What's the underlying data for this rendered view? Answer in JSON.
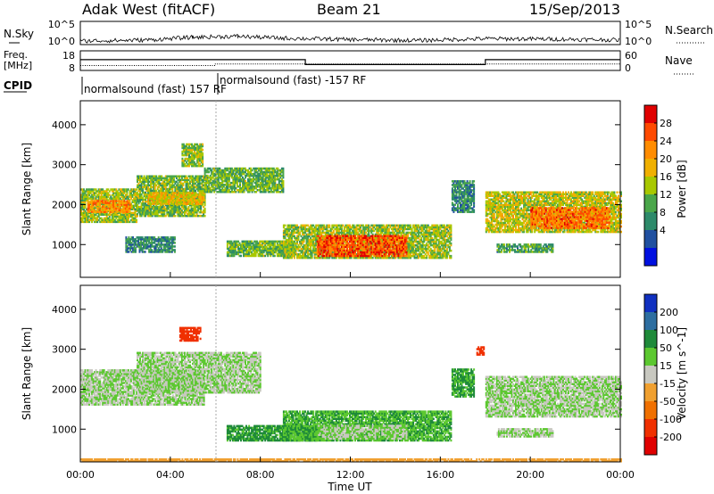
{
  "header": {
    "station": "Adak West (fitACF)",
    "beam": "Beam 21",
    "date": "15/Sep/2013"
  },
  "noise_panel": {
    "left_label": "N.Sky",
    "right_label": "N.Search",
    "left_ticks": [
      "10^5",
      "10^0"
    ],
    "right_ticks": [
      "10^5",
      "10^0"
    ]
  },
  "freq_panel": {
    "left_label_1": "Freq.",
    "left_label_2": "[MHz]",
    "left_ticks": [
      "18",
      "8"
    ],
    "right_label": "Nave",
    "right_ticks": [
      "60",
      "0"
    ]
  },
  "cpid_panel": {
    "label": "CPID",
    "segments": [
      {
        "start_hour": 0,
        "end_hour": 6.1,
        "text": "normalsound (fast) 157 RF"
      },
      {
        "start_hour": 6.1,
        "end_hour": 24,
        "text": "normalsound (fast) -157 RF"
      }
    ]
  },
  "power_colorbar": {
    "label": "Power [dB]",
    "ticks": [
      "28",
      "24",
      "20",
      "16",
      "12",
      "8",
      "4"
    ],
    "colors": [
      "#e00000",
      "#ff4a00",
      "#ff8c00",
      "#f0b000",
      "#a8c800",
      "#4aa64a",
      "#2d8a6a",
      "#2050a0",
      "#0010e0"
    ]
  },
  "velocity_colorbar": {
    "label": "Velocity [m s^-1]",
    "ticks": [
      "200",
      "100",
      "50",
      "15",
      "-15",
      "-50",
      "-100",
      "-200"
    ],
    "colors": [
      "#1030c0",
      "#2d6ea0",
      "#1f8a3a",
      "#5cc830",
      "#c8c8c0",
      "#f0a030",
      "#f07000",
      "#f03000",
      "#e00000"
    ]
  },
  "axes": {
    "ylabel": "Slant Range [km]",
    "yticks": [
      "4000",
      "3000",
      "2000",
      "1000"
    ],
    "xlabel": "Time UT",
    "xticks": [
      "00:00",
      "04:00",
      "08:00",
      "12:00",
      "16:00",
      "20:00",
      "00:00"
    ]
  },
  "chart_data": {
    "type": "heatmap",
    "x_range_hours": [
      0,
      24
    ],
    "y_range_km": [
      180,
      4600
    ],
    "freq_mhz": [
      {
        "x": 0,
        "y": 13.5
      },
      {
        "x": 10,
        "y": 13.5
      },
      {
        "x": 10,
        "y": 11
      },
      {
        "x": 18,
        "y": 11
      },
      {
        "x": 18,
        "y": 13.5
      },
      {
        "x": 24,
        "y": 13.5
      }
    ],
    "nave": [
      {
        "x": 0,
        "y": 15
      },
      {
        "x": 6,
        "y": 15
      },
      {
        "x": 6,
        "y": 20
      },
      {
        "x": 24,
        "y": 20
      }
    ],
    "noise_sky_log10": [
      {
        "x": 0,
        "y": 0.6
      },
      {
        "x": 3,
        "y": 0.8
      },
      {
        "x": 5,
        "y": 1.4
      },
      {
        "x": 7,
        "y": 1.6
      },
      {
        "x": 9,
        "y": 1.2
      },
      {
        "x": 12,
        "y": 0.9
      },
      {
        "x": 15,
        "y": 0.7
      },
      {
        "x": 18,
        "y": 1.1
      },
      {
        "x": 21,
        "y": 1.0
      },
      {
        "x": 24,
        "y": 0.8
      }
    ],
    "power_regions": [
      {
        "t0": 0.0,
        "t1": 2.5,
        "r0": 1550,
        "r1": 2400,
        "val": 14
      },
      {
        "t0": 0.3,
        "t1": 2.2,
        "r0": 1800,
        "r1": 2100,
        "val": 22
      },
      {
        "t0": 2.5,
        "t1": 5.5,
        "r0": 1700,
        "r1": 2700,
        "val": 13
      },
      {
        "t0": 3.0,
        "t1": 5.5,
        "r0": 2000,
        "r1": 2300,
        "val": 18
      },
      {
        "t0": 5.5,
        "t1": 9.0,
        "r0": 2300,
        "r1": 2900,
        "val": 12
      },
      {
        "t0": 4.5,
        "t1": 5.4,
        "r0": 2950,
        "r1": 3500,
        "val": 14
      },
      {
        "t0": 2.0,
        "t1": 4.2,
        "r0": 800,
        "r1": 1200,
        "val": 8
      },
      {
        "t0": 6.5,
        "t1": 9.5,
        "r0": 700,
        "r1": 1100,
        "val": 12
      },
      {
        "t0": 9.0,
        "t1": 16.5,
        "r0": 650,
        "r1": 1500,
        "val": 14
      },
      {
        "t0": 10.5,
        "t1": 14.5,
        "r0": 700,
        "r1": 1200,
        "val": 26
      },
      {
        "t0": 16.5,
        "t1": 17.5,
        "r0": 1800,
        "r1": 2600,
        "val": 8
      },
      {
        "t0": 18.5,
        "t1": 21.0,
        "r0": 800,
        "r1": 1000,
        "val": 10
      },
      {
        "t0": 18.0,
        "t1": 24.0,
        "r0": 1300,
        "r1": 2300,
        "val": 16
      },
      {
        "t0": 20.0,
        "t1": 23.5,
        "r0": 1400,
        "r1": 1900,
        "val": 24
      }
    ],
    "velocity_regions": [
      {
        "t0": 0.0,
        "t1": 5.5,
        "r0": 1600,
        "r1": 2500,
        "val": 0
      },
      {
        "t0": 2.5,
        "t1": 8.0,
        "r0": 1900,
        "r1": 2900,
        "val": 0
      },
      {
        "t0": 4.4,
        "t1": 5.3,
        "r0": 3200,
        "r1": 3550,
        "val": -180
      },
      {
        "t0": 6.5,
        "t1": 10.5,
        "r0": 700,
        "r1": 1100,
        "val": 40
      },
      {
        "t0": 9.0,
        "t1": 16.5,
        "r0": 700,
        "r1": 1450,
        "val": 30
      },
      {
        "t0": 10.5,
        "t1": 14.5,
        "r0": 750,
        "r1": 1100,
        "val": 0
      },
      {
        "t0": 16.5,
        "t1": 17.5,
        "r0": 1800,
        "r1": 2500,
        "val": 35
      },
      {
        "t0": 17.6,
        "t1": 17.9,
        "r0": 2850,
        "r1": 3050,
        "val": -200
      },
      {
        "t0": 18.5,
        "t1": 21.0,
        "r0": 800,
        "r1": 1000,
        "val": 0
      },
      {
        "t0": 18.0,
        "t1": 24.0,
        "r0": 1300,
        "r1": 2300,
        "val": 0
      },
      {
        "t0": 0.0,
        "t1": 24.0,
        "r0": 180,
        "r1": 260,
        "val": -60
      }
    ]
  }
}
